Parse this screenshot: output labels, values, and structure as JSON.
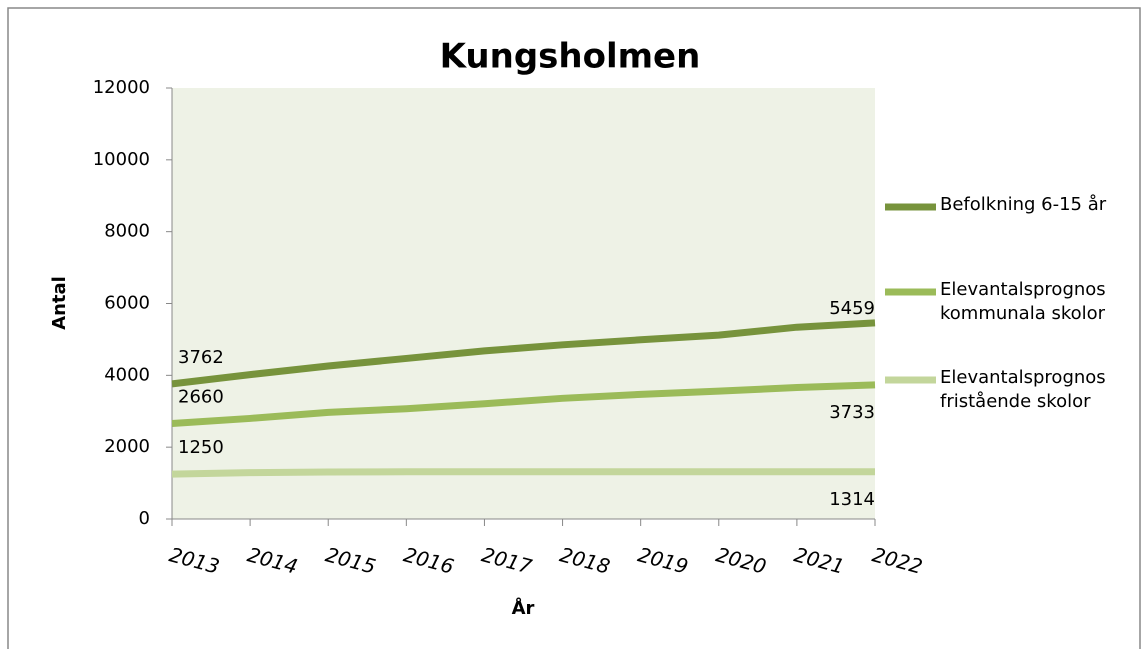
{
  "chart_data": {
    "type": "line",
    "title": "Kungsholmen",
    "x_label": "År",
    "y_label": "Antal",
    "x": [
      2013,
      2014,
      2015,
      2016,
      2017,
      2018,
      2019,
      2020,
      2021,
      2022
    ],
    "xlim": [
      2013,
      2022
    ],
    "xticks": [
      2013,
      2014,
      2015,
      2016,
      2017,
      2018,
      2019,
      2020,
      2021,
      2022
    ],
    "ylim": [
      0,
      12000
    ],
    "yticks": [
      0,
      2000,
      4000,
      6000,
      8000,
      10000,
      12000
    ],
    "grid": false,
    "legend": "right",
    "data_labels": "ends",
    "series": [
      {
        "name": "Befolkning 6-15 år",
        "color": "#77933c",
        "values": [
          3762,
          4020,
          4260,
          4470,
          4680,
          4850,
          4990,
          5120,
          5340,
          5459
        ]
      },
      {
        "name": "Elevantalsprognos kommunala skolor",
        "color": "#9bbb59",
        "values": [
          2660,
          2800,
          2970,
          3070,
          3210,
          3360,
          3470,
          3560,
          3660,
          3733
        ]
      },
      {
        "name": "Elevantalsprognos fristående skolor",
        "color": "#c3d69b",
        "values": [
          1250,
          1290,
          1310,
          1314,
          1314,
          1314,
          1314,
          1314,
          1314,
          1314
        ]
      }
    ]
  }
}
